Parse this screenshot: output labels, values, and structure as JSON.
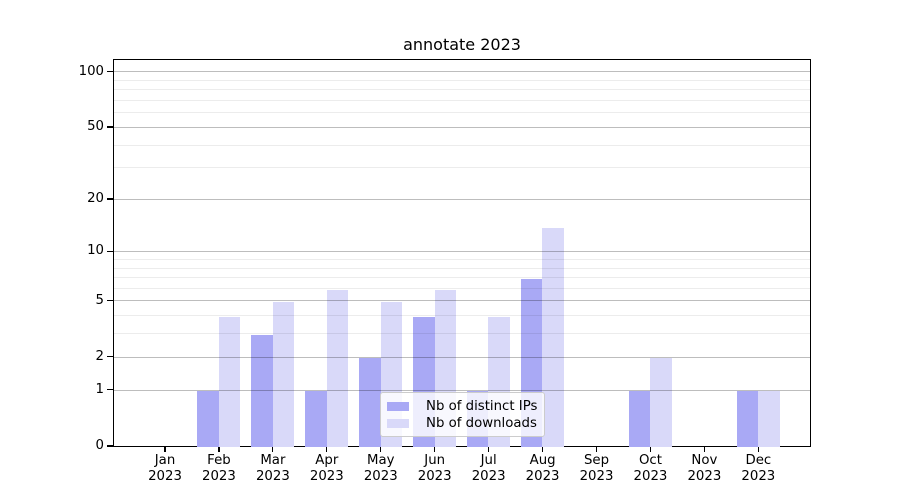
{
  "figure": {
    "title": "annotate 2023"
  },
  "chart_data": {
    "type": "bar",
    "title": "annotate 2023",
    "categories": [
      "Jan\n2023",
      "Feb\n2023",
      "Mar\n2023",
      "Apr\n2023",
      "May\n2023",
      "Jun\n2023",
      "Jul\n2023",
      "Aug\n2023",
      "Sep\n2023",
      "Oct\n2023",
      "Nov\n2023",
      "Dec\n2023"
    ],
    "series": [
      {
        "name": "Nb of distinct IPs",
        "color": "#a9a9f5",
        "values": [
          0,
          1,
          3,
          1,
          2,
          4,
          1,
          7,
          0,
          1,
          0,
          1
        ]
      },
      {
        "name": "Nb of downloads",
        "color": "#d9d9f9",
        "values": [
          0,
          4,
          5,
          6,
          5,
          6,
          4,
          14,
          0,
          2,
          0,
          1
        ]
      }
    ],
    "xlabel": "",
    "ylabel": "",
    "y_scale": "log1p",
    "y_ticks": [
      0,
      1,
      2,
      5,
      10,
      20,
      50,
      100
    ],
    "y_minor_ticks": [
      3,
      4,
      6,
      7,
      8,
      9,
      30,
      40,
      60,
      70,
      80,
      90
    ],
    "ylim": [
      0,
      116
    ],
    "grid": "on",
    "legend_position": "lower center"
  },
  "colors": {
    "bar_distinct_ips": "#a9a9f5",
    "bar_downloads": "#d9d9f9",
    "grid_major": "rgba(0,0,0,0.26)",
    "grid_minor": "rgba(0,0,0,0.075)",
    "spine": "#000000"
  }
}
